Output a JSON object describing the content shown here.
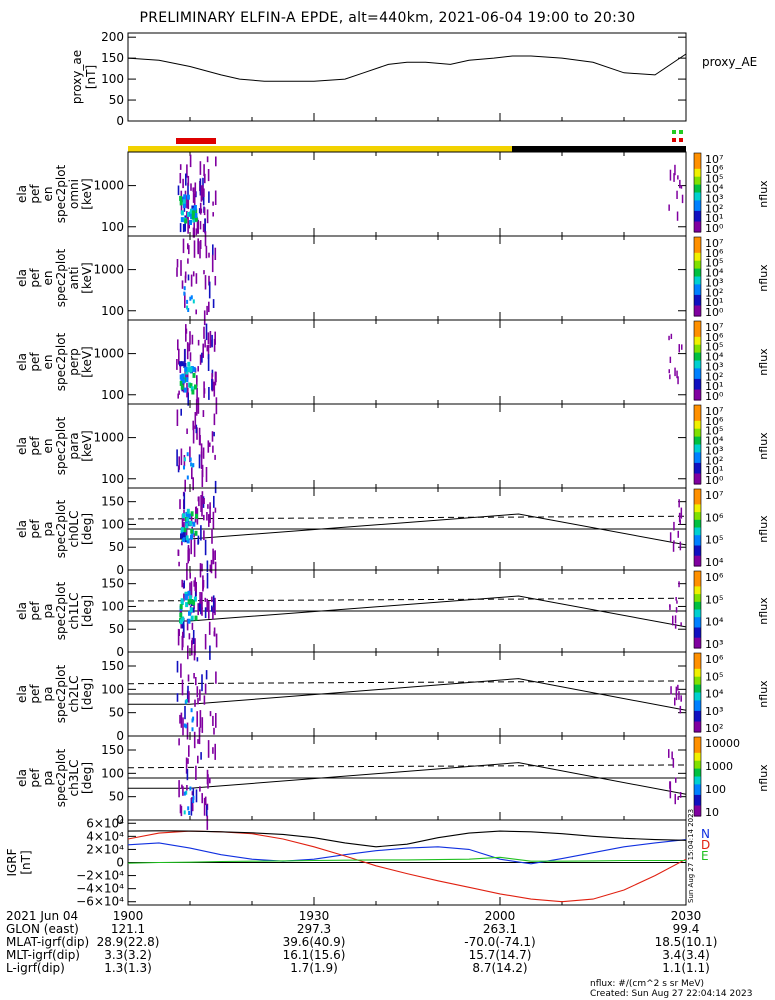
{
  "title": "PRELIMINARY ELFIN-A EPDE, alt=440km, 2021-06-04 19:00 to 20:30",
  "colors": {
    "mlt_bar_day": "#f2d200",
    "mlt_bar_night": "#000000",
    "science_zone_bar": "#dd0000",
    "marker_green": "#22cc22",
    "marker_red": "#dd0000",
    "component_n": "#1030e0",
    "component_d": "#e02010",
    "component_e": "#20c020"
  },
  "chart_data": [
    {
      "type": "line",
      "name": "proxy_AE",
      "right_label": "proxy_AE",
      "ylabel_lines": [
        "proxy_ae",
        "[nT]"
      ],
      "ylim": [
        0,
        210
      ],
      "yticks": [
        "200",
        "150",
        "100",
        "50",
        "0"
      ],
      "x_minutes": [
        0,
        5,
        10,
        15,
        18,
        22,
        27,
        30,
        35,
        38,
        42,
        45,
        48,
        52,
        55,
        59,
        62,
        65,
        70,
        75,
        80,
        85,
        90
      ],
      "values": [
        150,
        145,
        130,
        110,
        100,
        95,
        95,
        95,
        100,
        115,
        135,
        140,
        140,
        135,
        145,
        150,
        155,
        155,
        150,
        140,
        115,
        110,
        160
      ]
    },
    {
      "type": "heatmap",
      "name": "omni",
      "ylabel_lines": [
        "ela",
        "pef",
        "en",
        "spec2plot",
        "omni",
        "[keV]"
      ],
      "yticks": [
        "1000",
        "100"
      ],
      "log_y": true,
      "colorbar": {
        "label": "nflux",
        "ticks": [
          "10⁷",
          "10⁶",
          "10⁵",
          "10⁴",
          "10³",
          "10²",
          "10¹",
          "10⁰"
        ]
      }
    },
    {
      "type": "heatmap",
      "name": "anti",
      "ylabel_lines": [
        "ela",
        "pef",
        "en",
        "spec2plot",
        "anti",
        "[keV]"
      ],
      "yticks": [
        "1000",
        "100"
      ],
      "log_y": true,
      "colorbar": {
        "label": "nflux",
        "ticks": [
          "10⁷",
          "10⁶",
          "10⁵",
          "10⁴",
          "10³",
          "10²",
          "10¹",
          "10⁰"
        ]
      }
    },
    {
      "type": "heatmap",
      "name": "perp",
      "ylabel_lines": [
        "ela",
        "pef",
        "en",
        "spec2plot",
        "perp",
        "[keV]"
      ],
      "yticks": [
        "1000",
        "100"
      ],
      "log_y": true,
      "colorbar": {
        "label": "nflux",
        "ticks": [
          "10⁷",
          "10⁶",
          "10⁵",
          "10⁴",
          "10³",
          "10²",
          "10¹",
          "10⁰"
        ]
      }
    },
    {
      "type": "heatmap",
      "name": "para",
      "ylabel_lines": [
        "ela",
        "pef",
        "en",
        "spec2plot",
        "para",
        "[keV]"
      ],
      "yticks": [
        "1000",
        "100"
      ],
      "log_y": true,
      "colorbar": {
        "label": "nflux",
        "ticks": [
          "10⁷",
          "10⁶",
          "10⁵",
          "10⁴",
          "10³",
          "10²",
          "10¹",
          "10⁰"
        ]
      }
    },
    {
      "type": "heatmap",
      "name": "ch0LC",
      "ylabel_lines": [
        "ela",
        "pef",
        "pa",
        "spec2plot",
        "ch0LC",
        "[deg]"
      ],
      "yticks": [
        "150",
        "100",
        "50",
        "0"
      ],
      "ylim": [
        0,
        180
      ],
      "colorbar": {
        "label": "nflux",
        "ticks": [
          "10⁷",
          "10⁶",
          "10⁵",
          "10⁴"
        ]
      }
    },
    {
      "type": "heatmap",
      "name": "ch1LC",
      "ylabel_lines": [
        "ela",
        "pef",
        "pa",
        "spec2plot",
        "ch1LC",
        "[deg]"
      ],
      "yticks": [
        "150",
        "100",
        "50",
        "0"
      ],
      "ylim": [
        0,
        180
      ],
      "colorbar": {
        "label": "nflux",
        "ticks": [
          "10⁶",
          "10⁵",
          "10⁴",
          "10³"
        ]
      }
    },
    {
      "type": "heatmap",
      "name": "ch2LC",
      "ylabel_lines": [
        "ela",
        "pef",
        "pa",
        "spec2plot",
        "ch2LC",
        "[deg]"
      ],
      "yticks": [
        "150",
        "100",
        "50",
        "0"
      ],
      "ylim": [
        0,
        180
      ],
      "colorbar": {
        "label": "nflux",
        "ticks": [
          "10⁶",
          "10⁵",
          "10⁴",
          "10³",
          "10²"
        ]
      }
    },
    {
      "type": "heatmap",
      "name": "ch3LC",
      "ylabel_lines": [
        "ela",
        "pef",
        "pa",
        "spec2plot",
        "ch3LC",
        "[deg]"
      ],
      "yticks": [
        "150",
        "100",
        "50",
        "0"
      ],
      "ylim": [
        0,
        180
      ],
      "colorbar": {
        "label": "nflux",
        "ticks": [
          "10000",
          "1000",
          "100",
          "10"
        ]
      }
    },
    {
      "type": "line",
      "name": "IGRF",
      "ylabel_lines": [
        "IGRF",
        "[nT]"
      ],
      "ylim": [
        -65000,
        65000
      ],
      "yticks": [
        "6×10⁴",
        "4×10⁴",
        "2×10⁴",
        "0",
        "−2×10⁴",
        "−4×10⁴",
        "−6×10⁴"
      ],
      "legend": [
        "N",
        "D",
        "E"
      ],
      "side_stamp": "Sun Aug 27 15:04:14 2023",
      "x_minutes": [
        0,
        5,
        10,
        15,
        20,
        25,
        30,
        35,
        40,
        45,
        50,
        55,
        60,
        65,
        70,
        75,
        80,
        85,
        90
      ],
      "series": [
        {
          "name": "N",
          "values": [
            27000,
            30000,
            22000,
            12000,
            5000,
            2000,
            5000,
            12000,
            18000,
            22000,
            24000,
            20000,
            5000,
            -2000,
            6000,
            15000,
            24000,
            30000,
            35000
          ]
        },
        {
          "name": "D",
          "values": [
            36000,
            45000,
            48000,
            47000,
            44000,
            36000,
            24000,
            10000,
            -5000,
            -17000,
            -28000,
            -38000,
            -48000,
            -56000,
            -60000,
            -56000,
            -42000,
            -20000,
            5000
          ]
        },
        {
          "name": "E",
          "values": [
            -1000,
            0,
            500,
            1500,
            2000,
            2500,
            3000,
            3500,
            4000,
            4000,
            4500,
            5000,
            8000,
            2000,
            2000,
            2500,
            3000,
            3000,
            3000
          ]
        },
        {
          "name": "black",
          "values": [
            48000,
            48500,
            48000,
            47000,
            45500,
            43000,
            38000,
            30000,
            24000,
            28000,
            38000,
            45000,
            48000,
            47000,
            44000,
            40000,
            37000,
            35000,
            34000
          ]
        }
      ]
    }
  ],
  "ephemeris": {
    "row_labels": [
      "2021 Jun 04",
      "GLON (east)",
      "MLAT-igrf(dip)",
      "MLT-igrf(dip)",
      "L-igrf(dip)"
    ],
    "times": [
      "1900",
      "1930",
      "2000",
      "2030"
    ],
    "glon": [
      "121.1",
      "297.3",
      "263.1",
      "99.4"
    ],
    "mlat": [
      "28.9(22.8)",
      "39.6(40.9)",
      "-70.0(-74.1)",
      "18.5(10.1)"
    ],
    "mlt": [
      "3.3(3.2)",
      "16.1(15.6)",
      "15.7(14.7)",
      "3.4(3.4)"
    ],
    "lshell": [
      "1.3(1.3)",
      "1.7(1.9)",
      "8.7(14.2)",
      "1.1(1.1)"
    ]
  },
  "footer": {
    "units": "nflux: #/(cm^2 s sr MeV)",
    "created": "Created: Sun Aug 27 22:04:14 2023"
  }
}
